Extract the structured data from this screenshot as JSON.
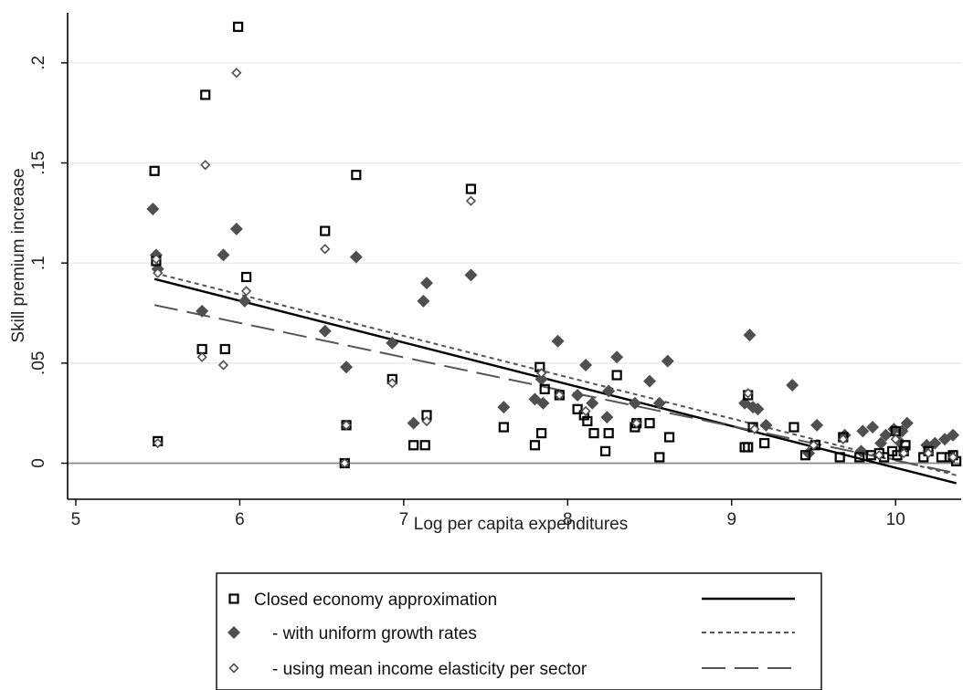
{
  "chart_data": {
    "type": "scatter",
    "title": "",
    "xlabel": "Log per capita expenditures",
    "ylabel": "Skill premium increase",
    "xlim": [
      4.95,
      10.4
    ],
    "ylim": [
      -0.018,
      0.225
    ],
    "x_ticks": [
      5,
      6,
      7,
      8,
      9,
      10
    ],
    "y_ticks": [
      0,
      0.05,
      0.1,
      0.15,
      0.2
    ],
    "x_tick_labels": [
      "5",
      "6",
      "7",
      "8",
      "9",
      "10"
    ],
    "y_tick_labels": [
      "0",
      ".05",
      ".1",
      ".15",
      ".2"
    ],
    "grid": "horizontal",
    "reference_line_y": 0,
    "legend_position": "bottom",
    "legend": [
      {
        "label": "Closed economy approximation",
        "marker": "hollow-square",
        "line": "solid"
      },
      {
        "label": "- with uniform growth rates",
        "marker": "filled-diamond",
        "line": "dotted"
      },
      {
        "label": "- using mean income elasticity per sector",
        "marker": "hollow-diamond",
        "line": "long-dash"
      }
    ],
    "series": [
      {
        "name": "Closed economy approximation",
        "marker": "hollow-square",
        "points": [
          [
            5.48,
            0.146
          ],
          [
            5.49,
            0.101
          ],
          [
            5.5,
            0.011
          ],
          [
            5.77,
            0.057
          ],
          [
            5.79,
            0.184
          ],
          [
            5.91,
            0.057
          ],
          [
            5.99,
            0.218
          ],
          [
            6.04,
            0.093
          ],
          [
            6.52,
            0.116
          ],
          [
            6.64,
            0.0
          ],
          [
            6.65,
            0.019
          ],
          [
            6.71,
            0.144
          ],
          [
            6.93,
            0.042
          ],
          [
            7.06,
            0.009
          ],
          [
            7.13,
            0.009
          ],
          [
            7.14,
            0.024
          ],
          [
            7.41,
            0.137
          ],
          [
            7.61,
            0.018
          ],
          [
            7.8,
            0.009
          ],
          [
            7.84,
            0.015
          ],
          [
            7.83,
            0.048
          ],
          [
            7.86,
            0.037
          ],
          [
            7.95,
            0.034
          ],
          [
            8.06,
            0.027
          ],
          [
            8.1,
            0.024
          ],
          [
            8.12,
            0.021
          ],
          [
            8.16,
            0.015
          ],
          [
            8.23,
            0.006
          ],
          [
            8.25,
            0.015
          ],
          [
            8.3,
            0.044
          ],
          [
            8.41,
            0.018
          ],
          [
            8.42,
            0.02
          ],
          [
            8.5,
            0.02
          ],
          [
            8.56,
            0.003
          ],
          [
            8.62,
            0.013
          ],
          [
            9.08,
            0.008
          ],
          [
            9.1,
            0.008
          ],
          [
            9.1,
            0.034
          ],
          [
            9.13,
            0.018
          ],
          [
            9.2,
            0.01
          ],
          [
            9.38,
            0.018
          ],
          [
            9.45,
            0.004
          ],
          [
            9.51,
            0.009
          ],
          [
            9.66,
            0.003
          ],
          [
            9.68,
            0.013
          ],
          [
            9.78,
            0.003
          ],
          [
            9.85,
            0.004
          ],
          [
            9.9,
            0.005
          ],
          [
            9.93,
            0.003
          ],
          [
            9.98,
            0.006
          ],
          [
            10.0,
            0.016
          ],
          [
            10.01,
            0.004
          ],
          [
            10.05,
            0.006
          ],
          [
            10.06,
            0.009
          ],
          [
            10.17,
            0.003
          ],
          [
            10.2,
            0.006
          ],
          [
            10.28,
            0.003
          ],
          [
            10.33,
            0.003
          ],
          [
            10.35,
            0.004
          ],
          [
            10.37,
            0.001
          ]
        ]
      },
      {
        "name": "- with uniform growth rates",
        "marker": "filled-diamond",
        "points": [
          [
            5.47,
            0.127
          ],
          [
            5.49,
            0.104
          ],
          [
            5.5,
            0.097
          ],
          [
            5.77,
            0.076
          ],
          [
            5.9,
            0.104
          ],
          [
            5.98,
            0.117
          ],
          [
            6.03,
            0.081
          ],
          [
            6.52,
            0.066
          ],
          [
            6.65,
            0.048
          ],
          [
            6.71,
            0.103
          ],
          [
            6.93,
            0.06
          ],
          [
            7.06,
            0.02
          ],
          [
            7.12,
            0.081
          ],
          [
            7.14,
            0.09
          ],
          [
            7.41,
            0.094
          ],
          [
            7.61,
            0.028
          ],
          [
            7.8,
            0.032
          ],
          [
            7.84,
            0.042
          ],
          [
            7.85,
            0.03
          ],
          [
            7.94,
            0.061
          ],
          [
            8.06,
            0.034
          ],
          [
            8.11,
            0.049
          ],
          [
            8.15,
            0.03
          ],
          [
            8.24,
            0.023
          ],
          [
            8.25,
            0.036
          ],
          [
            8.3,
            0.053
          ],
          [
            8.41,
            0.03
          ],
          [
            8.5,
            0.041
          ],
          [
            8.56,
            0.03
          ],
          [
            8.61,
            0.051
          ],
          [
            9.08,
            0.03
          ],
          [
            9.11,
            0.064
          ],
          [
            9.13,
            0.028
          ],
          [
            9.16,
            0.027
          ],
          [
            9.21,
            0.019
          ],
          [
            9.37,
            0.039
          ],
          [
            9.47,
            0.005
          ],
          [
            9.52,
            0.019
          ],
          [
            9.69,
            0.014
          ],
          [
            9.79,
            0.006
          ],
          [
            9.8,
            0.016
          ],
          [
            9.86,
            0.018
          ],
          [
            9.91,
            0.01
          ],
          [
            9.94,
            0.014
          ],
          [
            9.99,
            0.017
          ],
          [
            10.02,
            0.011
          ],
          [
            10.04,
            0.016
          ],
          [
            10.07,
            0.02
          ],
          [
            10.19,
            0.009
          ],
          [
            10.24,
            0.01
          ],
          [
            10.3,
            0.012
          ],
          [
            10.35,
            0.014
          ]
        ]
      },
      {
        "name": "- using mean income elasticity per sector",
        "marker": "hollow-diamond",
        "points": [
          [
            5.49,
            0.102
          ],
          [
            5.5,
            0.095
          ],
          [
            5.5,
            0.01
          ],
          [
            5.77,
            0.053
          ],
          [
            5.79,
            0.149
          ],
          [
            5.9,
            0.049
          ],
          [
            5.98,
            0.195
          ],
          [
            6.04,
            0.086
          ],
          [
            6.52,
            0.107
          ],
          [
            6.64,
            0.0
          ],
          [
            6.65,
            0.019
          ],
          [
            6.93,
            0.04
          ],
          [
            7.14,
            0.021
          ],
          [
            7.41,
            0.131
          ],
          [
            7.84,
            0.045
          ],
          [
            7.95,
            0.034
          ],
          [
            8.11,
            0.026
          ],
          [
            8.42,
            0.02
          ],
          [
            9.1,
            0.035
          ],
          [
            9.14,
            0.017
          ],
          [
            9.5,
            0.009
          ],
          [
            9.68,
            0.012
          ],
          [
            9.9,
            0.004
          ],
          [
            10.0,
            0.012
          ],
          [
            10.05,
            0.005
          ],
          [
            10.2,
            0.005
          ],
          [
            10.35,
            0.003
          ]
        ]
      }
    ],
    "fit_lines": [
      {
        "name": "Closed economy approximation",
        "style": "solid",
        "x": [
          5.48,
          10.37
        ],
        "y": [
          0.092,
          -0.01
        ]
      },
      {
        "name": "- with uniform growth rates",
        "style": "dotted",
        "x": [
          5.48,
          10.37
        ],
        "y": [
          0.095,
          -0.006
        ]
      },
      {
        "name": "- using mean income elasticity per sector",
        "style": "long-dash",
        "x": [
          5.48,
          10.37
        ],
        "y": [
          0.079,
          -0.005
        ]
      }
    ]
  }
}
